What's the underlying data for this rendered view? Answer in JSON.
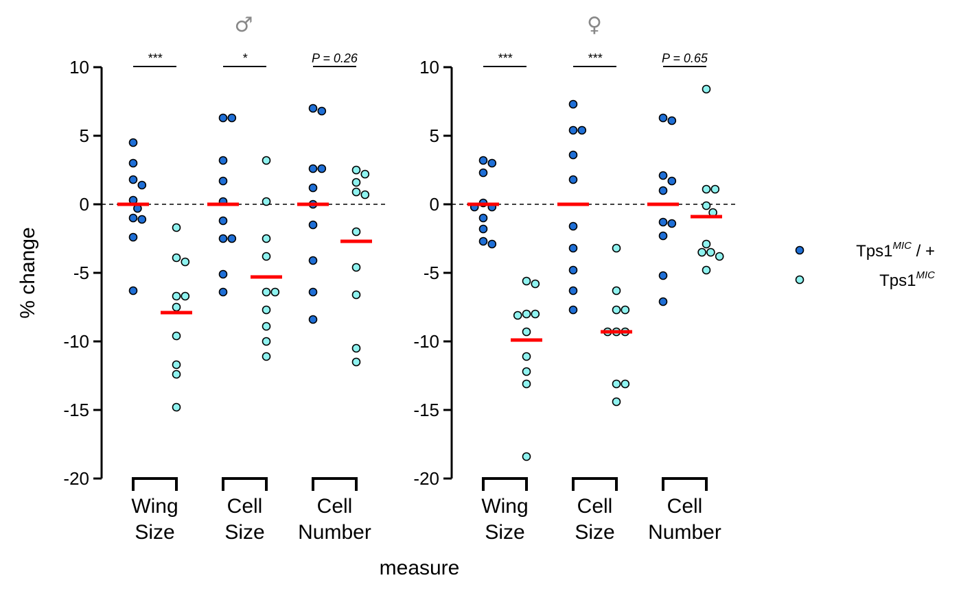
{
  "chart_data": {
    "type": "scatter",
    "xlabel": "measure",
    "ylabel": "% change",
    "ylim": [
      -20,
      10
    ],
    "yticks": [
      10,
      5,
      0,
      -5,
      -10,
      -15,
      -20
    ],
    "ytick_labels": [
      "10",
      "5",
      "0",
      "-5",
      "-10",
      "-15",
      "-20"
    ],
    "reference_line": 0,
    "colors": {
      "het": "#1f6fd6",
      "hom": "#8ff3f0",
      "median": "#ff0000"
    },
    "legend": {
      "placement": "right",
      "entries": [
        {
          "key": "het",
          "base": "Tps1",
          "sup": "MIC",
          "suffix": " / +"
        },
        {
          "key": "hom",
          "base": "Tps1",
          "sup": "MIC",
          "suffix": ""
        }
      ]
    },
    "panels": [
      {
        "title": "♂",
        "groups": [
          {
            "label_lines": [
              "Wing",
              "Size"
            ],
            "sig": "***",
            "het": {
              "values": [
                4.5,
                3.0,
                1.8,
                1.4,
                0.3,
                -0.3,
                -1.1,
                -1.0,
                -2.4,
                -6.3
              ],
              "median": 0.0
            },
            "hom": {
              "values": [
                -1.7,
                -4.2,
                -3.9,
                -6.7,
                -6.7,
                -7.5,
                -9.6,
                -11.7,
                -12.4,
                -14.8
              ],
              "median": -7.9
            }
          },
          {
            "label_lines": [
              "Cell",
              "Size"
            ],
            "sig": "*",
            "het": {
              "values": [
                6.3,
                6.3,
                3.2,
                1.7,
                0.2,
                -1.2,
                -2.5,
                -2.5,
                -5.1,
                -6.4
              ],
              "median": 0.0
            },
            "hom": {
              "values": [
                3.2,
                0.2,
                -2.5,
                -3.8,
                -6.4,
                -6.4,
                -7.7,
                -8.9,
                -10.0,
                -11.1
              ],
              "median": -5.3
            }
          },
          {
            "label_lines": [
              "Cell",
              "Number"
            ],
            "sig": "P = 0.26",
            "het": {
              "values": [
                7.0,
                6.8,
                2.6,
                2.6,
                1.2,
                0.0,
                -1.5,
                -4.1,
                -6.4,
                -8.4
              ],
              "median": 0.0
            },
            "hom": {
              "values": [
                2.5,
                2.2,
                1.6,
                0.9,
                0.7,
                -2.0,
                -4.6,
                -6.6,
                -10.5,
                -11.5
              ],
              "median": -2.7
            }
          }
        ]
      },
      {
        "title": "♀",
        "groups": [
          {
            "label_lines": [
              "Wing",
              "Size"
            ],
            "sig": "***",
            "het": {
              "values": [
                3.2,
                3.0,
                2.3,
                0.1,
                -0.2,
                -0.2,
                -1.0,
                -1.8,
                -2.7,
                -2.9
              ],
              "median": 0.0
            },
            "hom": {
              "values": [
                -5.6,
                -5.8,
                -8.0,
                -8.0,
                -8.1,
                -9.3,
                -11.1,
                -12.2,
                -13.1,
                -18.4
              ],
              "median": -9.9
            }
          },
          {
            "label_lines": [
              "Cell",
              "Size"
            ],
            "sig": "***",
            "het": {
              "values": [
                7.3,
                5.4,
                5.4,
                3.6,
                1.8,
                -1.6,
                -3.2,
                -4.8,
                -6.3,
                -7.7
              ],
              "median": 0.0
            },
            "hom": {
              "values": [
                -3.2,
                -6.3,
                -7.7,
                -7.7,
                -9.3,
                -9.3,
                -9.3,
                -13.1,
                -13.1,
                -14.4
              ],
              "median": -9.3
            }
          },
          {
            "label_lines": [
              "Cell",
              "Number"
            ],
            "sig": "P = 0.65",
            "het": {
              "values": [
                6.3,
                6.1,
                2.1,
                1.7,
                1.0,
                -1.3,
                -1.4,
                -2.3,
                -5.2,
                -7.1
              ],
              "median": 0.0
            },
            "hom": {
              "values": [
                8.4,
                1.1,
                1.1,
                -0.1,
                -0.6,
                -2.9,
                -3.5,
                -3.5,
                -3.8,
                -4.8
              ],
              "median": -0.9
            }
          }
        ]
      }
    ]
  }
}
